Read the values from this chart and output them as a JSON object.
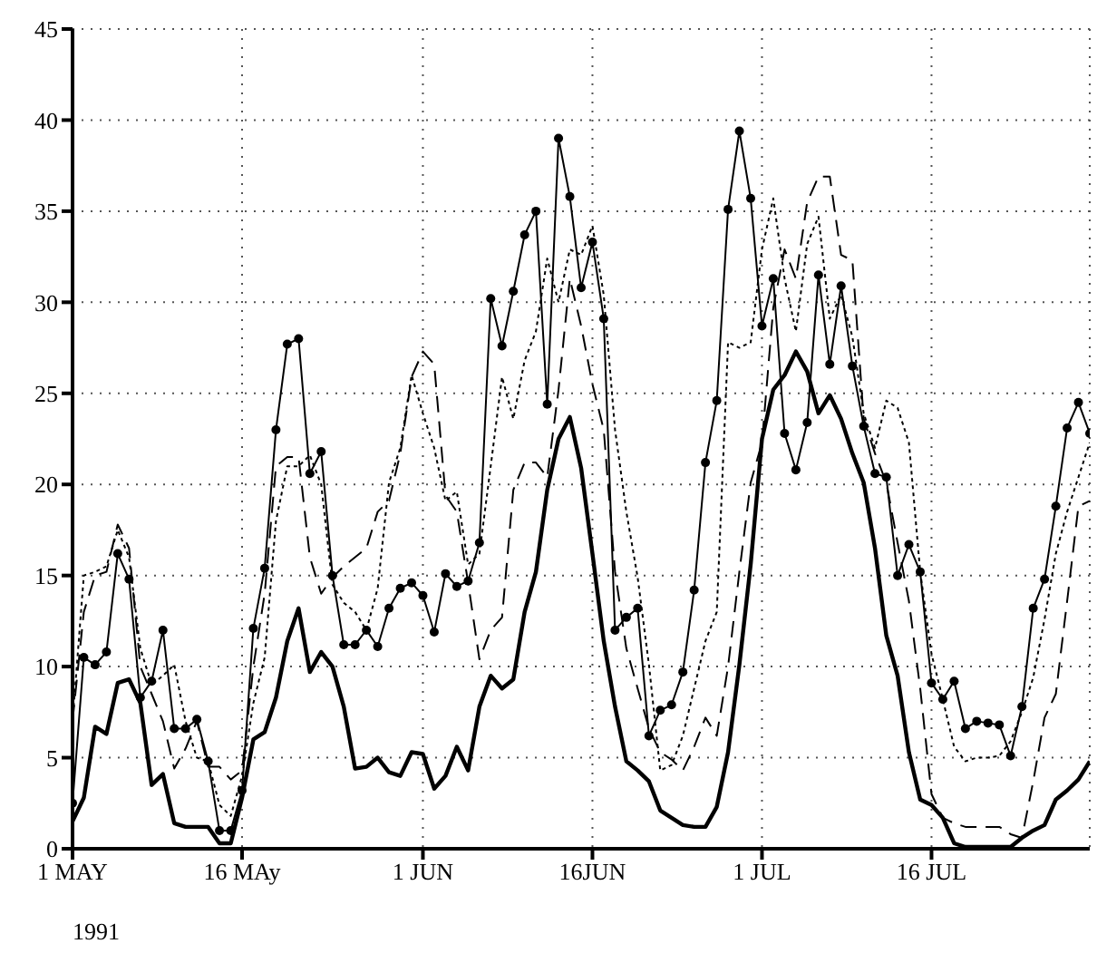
{
  "chart_data": {
    "type": "line",
    "x": [
      "1991-05-01",
      "1991-05-02",
      "1991-05-03",
      "1991-05-04",
      "1991-05-05",
      "1991-05-06",
      "1991-05-07",
      "1991-05-08",
      "1991-05-09",
      "1991-05-10",
      "1991-05-11",
      "1991-05-12",
      "1991-05-13",
      "1991-05-14",
      "1991-05-15",
      "1991-05-16",
      "1991-05-17",
      "1991-05-18",
      "1991-05-19",
      "1991-05-20",
      "1991-05-21",
      "1991-05-22",
      "1991-05-23",
      "1991-05-24",
      "1991-05-25",
      "1991-05-26",
      "1991-05-27",
      "1991-05-28",
      "1991-05-29",
      "1991-05-30",
      "1991-05-31",
      "1991-06-01",
      "1991-06-02",
      "1991-06-03",
      "1991-06-04",
      "1991-06-05",
      "1991-06-06",
      "1991-06-07",
      "1991-06-08",
      "1991-06-09",
      "1991-06-10",
      "1991-06-11",
      "1991-06-12",
      "1991-06-13",
      "1991-06-14",
      "1991-06-15",
      "1991-06-16",
      "1991-06-17",
      "1991-06-18",
      "1991-06-19",
      "1991-06-20",
      "1991-06-21",
      "1991-06-22",
      "1991-06-23",
      "1991-06-24",
      "1991-06-25",
      "1991-06-26",
      "1991-06-27",
      "1991-06-28",
      "1991-06-29",
      "1991-06-30",
      "1991-07-01",
      "1991-07-02",
      "1991-07-03",
      "1991-07-04",
      "1991-07-05",
      "1991-07-06",
      "1991-07-07",
      "1991-07-08",
      "1991-07-09",
      "1991-07-10",
      "1991-07-11",
      "1991-07-12",
      "1991-07-13",
      "1991-07-14",
      "1991-07-15",
      "1991-07-16",
      "1991-07-17",
      "1991-07-18",
      "1991-07-19",
      "1991-07-20",
      "1991-07-21",
      "1991-07-22",
      "1991-07-23",
      "1991-07-24",
      "1991-07-25",
      "1991-07-26",
      "1991-07-27",
      "1991-07-28",
      "1991-07-29",
      "1991-07-30"
    ],
    "series": [
      {
        "color": "#000000",
        "marker": "circle",
        "line_style": "solid",
        "values": [
          2.5,
          10.5,
          10.1,
          10.8,
          16.2,
          14.8,
          8.3,
          9.2,
          12.0,
          6.6,
          6.6,
          7.1,
          4.8,
          1.0,
          1.0,
          3.2,
          12.1,
          15.4,
          23.0,
          27.7,
          28.0,
          20.6,
          21.8,
          15.0,
          11.2,
          11.2,
          12.0,
          11.1,
          13.2,
          14.3,
          14.6,
          13.9,
          11.9,
          15.1,
          14.4,
          14.7,
          16.8,
          30.2,
          27.6,
          30.6,
          33.7,
          35.0,
          24.4,
          39.0,
          35.8,
          30.8,
          33.3,
          29.1,
          12.0,
          12.7,
          13.2,
          6.2,
          7.6,
          7.9,
          9.7,
          14.2,
          21.2,
          24.6,
          35.1,
          39.4,
          35.7,
          28.7,
          31.3,
          22.8,
          20.8,
          23.4,
          31.5,
          26.6,
          30.9,
          26.5,
          23.2,
          20.6,
          20.4,
          15.0,
          16.7,
          15.2,
          9.1,
          8.2,
          9.2,
          6.6,
          7.0,
          6.9,
          6.8,
          5.1,
          7.8,
          13.2,
          14.8,
          18.8,
          23.1,
          24.5,
          22.8
        ]
      },
      {
        "color": "#000000",
        "marker": "none",
        "line_style": "solid",
        "values": [
          1.5,
          2.8,
          6.7,
          6.3,
          9.1,
          9.3,
          8.0,
          3.5,
          4.1,
          1.4,
          1.2,
          1.2,
          1.2,
          0.3,
          0.3,
          2.8,
          6.0,
          6.4,
          8.3,
          11.4,
          13.2,
          9.7,
          10.8,
          10.0,
          7.8,
          4.4,
          4.5,
          5.0,
          4.2,
          4.0,
          5.3,
          5.2,
          3.3,
          4.0,
          5.6,
          4.3,
          7.8,
          9.5,
          8.8,
          9.3,
          13.0,
          15.2,
          19.7,
          22.5,
          23.7,
          20.9,
          16.2,
          11.4,
          7.8,
          4.8,
          4.3,
          3.7,
          2.1,
          1.7,
          1.3,
          1.2,
          1.2,
          2.3,
          5.3,
          10.1,
          15.6,
          22.5,
          25.2,
          26.0,
          27.3,
          26.2,
          23.9,
          24.9,
          23.6,
          21.7,
          20.1,
          16.5,
          11.7,
          9.5,
          5.3,
          2.7,
          2.4,
          1.7,
          0.3,
          0.1,
          0.1,
          0.1,
          0.1,
          0.1,
          0.6,
          1.0,
          1.3,
          2.7,
          3.2,
          3.8,
          4.8
        ]
      },
      {
        "color": "#000000",
        "marker": "none",
        "line_style": "dashed",
        "values": [
          7,
          13,
          15,
          15.2,
          17.8,
          16.5,
          10,
          8.5,
          7,
          4.4,
          5.5,
          7,
          4.5,
          4.5,
          3.8,
          4.3,
          10,
          14,
          21,
          21.5,
          21.5,
          16,
          14,
          14.9,
          15.5,
          16,
          16.5,
          18.5,
          19.1,
          21.7,
          25.9,
          27.3,
          26.6,
          19.4,
          18.5,
          14.6,
          10.4,
          12.0,
          12.7,
          19.7,
          21.2,
          21.2,
          20.4,
          25.2,
          31.3,
          28.7,
          25.5,
          23.0,
          15.2,
          11.0,
          8.8,
          6.6,
          5.3,
          4.9,
          4.3,
          5.6,
          7.2,
          6.2,
          10,
          15.2,
          20.1,
          22.3,
          29.7,
          32.9,
          31.3,
          35.5,
          36.9,
          36.9,
          32.6,
          32.3,
          23.6,
          21.7,
          20.1,
          16.8,
          13.6,
          8.8,
          3.0,
          1.7,
          1.4,
          1.2,
          1.2,
          1.2,
          1.2,
          0.8,
          0.6,
          3.7,
          7.2,
          8.5,
          13.6,
          18.8,
          19.1
        ]
      },
      {
        "color": "#000000",
        "marker": "none",
        "line_style": "dotted",
        "values": [
          7,
          15,
          15.2,
          15.5,
          17.5,
          16,
          11,
          9,
          9.5,
          10.1,
          7,
          5,
          4.8,
          2.4,
          1.8,
          4,
          8,
          10.5,
          18,
          21,
          21,
          21.6,
          20,
          14.5,
          13.5,
          13,
          12,
          14.3,
          20.1,
          22,
          26,
          23.9,
          22,
          19.1,
          19.6,
          15.6,
          16.2,
          21,
          25.9,
          23.6,
          26.8,
          28.4,
          32.4,
          30.0,
          32.9,
          32.6,
          34.2,
          30.4,
          23.0,
          18.5,
          14.9,
          10.1,
          4.3,
          4.6,
          6.2,
          8.8,
          11.4,
          13.0,
          27.8,
          27.5,
          27.8,
          32.9,
          35.7,
          31.3,
          28.4,
          33.2,
          34.7,
          29.1,
          30.4,
          28.1,
          23.9,
          22,
          24.6,
          24.2,
          22.3,
          15.2,
          10.7,
          8.2,
          5.6,
          4.8,
          5.0,
          5.0,
          5.1,
          5.9,
          7.5,
          9.4,
          12.6,
          16.2,
          18.5,
          20.4,
          22.3
        ]
      }
    ],
    "xlim": [
      "1991-05-01",
      "1991-07-30"
    ],
    "xticks": [
      {
        "value": "1991-05-01",
        "label": "1 MAY"
      },
      {
        "value": "1991-05-16",
        "label": "16 MAy"
      },
      {
        "value": "1991-06-01",
        "label": "1 JUN"
      },
      {
        "value": "1991-06-16",
        "label": "16JUN"
      },
      {
        "value": "1991-07-01",
        "label": "1 JUL"
      },
      {
        "value": "1991-07-16",
        "label": "16 JUL"
      }
    ],
    "ylim": [
      0,
      45
    ],
    "yticks": [
      0,
      5,
      10,
      15,
      20,
      25,
      30,
      35,
      40,
      45
    ],
    "grid": true,
    "legend": false,
    "annotations": [
      "1991"
    ]
  }
}
